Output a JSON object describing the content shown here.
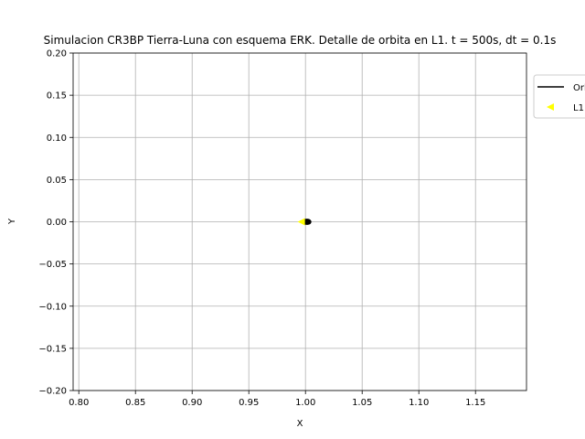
{
  "chart_data": {
    "type": "line",
    "title": "Simulacion CR3BP Tierra-Luna con esquema ERK. Detalle de orbita en L1. t = 500s, dt = 0.1s",
    "xlabel": "X",
    "ylabel": "Y",
    "xlim": [
      0.795,
      1.195
    ],
    "ylim": [
      -0.2,
      0.2
    ],
    "x_ticks": [
      0.8,
      0.85,
      0.9,
      0.95,
      1.0,
      1.05,
      1.1,
      1.15
    ],
    "x_tick_labels": [
      "0.80",
      "0.85",
      "0.90",
      "0.95",
      "1.00",
      "1.05",
      "1.10",
      "1.15"
    ],
    "y_ticks": [
      0.2,
      0.15,
      0.1,
      0.05,
      0.0,
      -0.05,
      -0.1,
      -0.15,
      -0.2
    ],
    "y_tick_labels": [
      "0.20",
      "0.15",
      "0.10",
      "0.05",
      "0.00",
      "−0.05",
      "−0.10",
      "−0.15",
      "−0.20"
    ],
    "grid": true,
    "legend_position": "top-right",
    "series": [
      {
        "name": "Orbita",
        "kind": "line",
        "color": "#000000",
        "x": [
          0.9995,
          1.0005,
          1.0015,
          1.0025,
          1.0028,
          1.0022,
          1.0012,
          1.0002,
          0.9995
        ],
        "y": [
          0.0,
          -0.0003,
          -0.0004,
          -0.0002,
          0.0,
          0.0003,
          0.0004,
          0.0003,
          0.0
        ]
      },
      {
        "name": "L1",
        "kind": "marker",
        "marker": "triangle-left",
        "color": "#ffff00",
        "x": [
          0.9963
        ],
        "y": [
          0.0
        ]
      }
    ]
  }
}
